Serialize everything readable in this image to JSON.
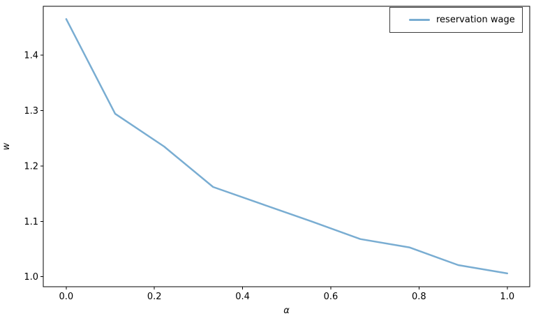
{
  "chart_data": {
    "type": "line",
    "title": "",
    "xlabel": "α",
    "ylabel": "w",
    "x": [
      0.0,
      0.111,
      0.222,
      0.333,
      0.444,
      0.556,
      0.667,
      0.778,
      0.889,
      1.0
    ],
    "series": [
      {
        "name": "reservation wage",
        "color": "#79add2",
        "values": [
          1.465,
          1.294,
          1.235,
          1.162,
          1.131,
          1.1,
          1.068,
          1.053,
          1.021,
          1.006
        ]
      }
    ],
    "xlim": [
      -0.052,
      1.051
    ],
    "ylim": [
      0.982,
      1.488
    ],
    "xticks": [
      0.0,
      0.2,
      0.4,
      0.6,
      0.8,
      1.0
    ],
    "yticks": [
      1.0,
      1.1,
      1.2,
      1.3,
      1.4
    ],
    "tick_decimals": 1,
    "grid": false,
    "legend_position": "upper right",
    "line_width": 2.5,
    "background": "#ffffff",
    "axis_color": "#000000",
    "tick_font_size": 13,
    "label_font_size": 13
  }
}
